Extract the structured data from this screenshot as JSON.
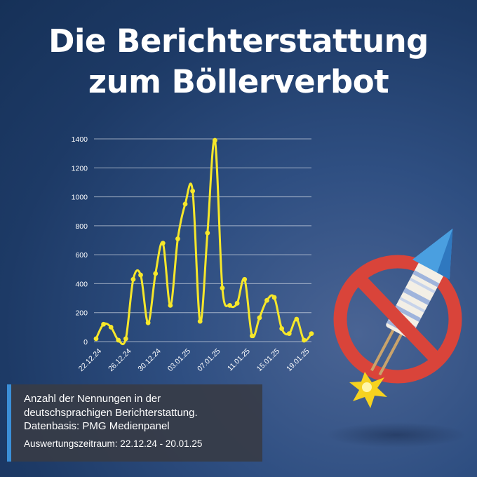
{
  "title": {
    "line1": "Die Berichterstattung",
    "line2": "zum Böllerverbot"
  },
  "chart_data": {
    "type": "line",
    "title": "Die Berichterstattung zum Böllerverbot",
    "x": [
      "22.12.24",
      "23.12.24",
      "24.12.24",
      "25.12.24",
      "26.12.24",
      "27.12.24",
      "28.12.24",
      "29.12.24",
      "30.12.24",
      "31.12.24",
      "01.01.25",
      "02.01.25",
      "03.01.25",
      "04.01.25",
      "05.01.25",
      "06.01.25",
      "07.01.25",
      "08.01.25",
      "09.01.25",
      "10.01.25",
      "11.01.25",
      "12.01.25",
      "13.01.25",
      "14.01.25",
      "15.01.25",
      "16.01.25",
      "17.01.25",
      "18.01.25",
      "19.01.25",
      "20.01.25"
    ],
    "x_tick_labels": [
      "22.12.24",
      "26.12.24",
      "30.12.24",
      "03.01.25",
      "07.01.25",
      "11.01.25",
      "15.01.25",
      "19.01.25"
    ],
    "values": [
      20,
      120,
      100,
      10,
      20,
      430,
      460,
      130,
      470,
      680,
      250,
      710,
      950,
      1040,
      140,
      750,
      1390,
      370,
      250,
      265,
      430,
      40,
      165,
      285,
      305,
      90,
      55,
      155,
      10,
      55
    ],
    "ylim": [
      0,
      1400
    ],
    "y_ticks": [
      "0",
      "200",
      "400",
      "600",
      "800",
      "1000",
      "1200",
      "1400"
    ],
    "grid": true,
    "line_color": "#f6e72a"
  },
  "info": {
    "line1": "Anzahl der Nennungen in der",
    "line2": "deutschsprachigen Berichterstattung.",
    "line3": "Datenbasis: PMG Medienpanel",
    "period": "Auswertungszeitraum: 22.12.24 - 20.01.25"
  },
  "icons": {
    "illustration": "banned-firework-rocket-icon"
  },
  "colors": {
    "accent_bar": "#3b8fd8",
    "ban_red": "#d9443a",
    "rocket_cone": "#4a9fe0"
  }
}
